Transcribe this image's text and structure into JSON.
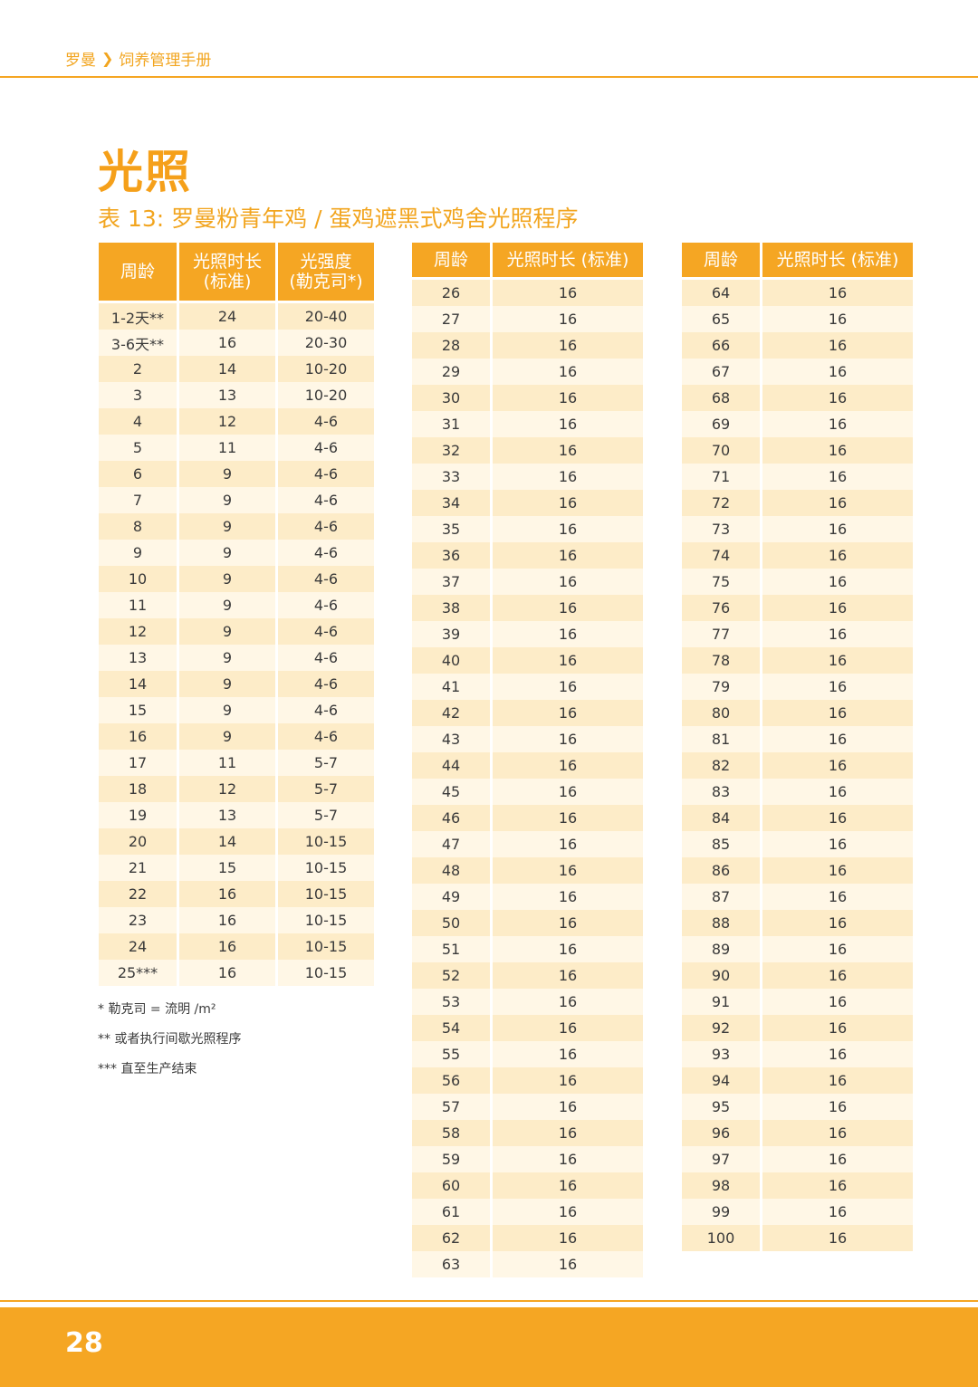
{
  "header": {
    "brand": "罗曼",
    "section": "饲养管理手册"
  },
  "title": "光照",
  "subtitle": "表 13: 罗曼粉青年鸡 / 蛋鸡遮黑式鸡舍光照程序",
  "table1": {
    "headers": [
      "周龄",
      "光照时长\n(标准)",
      "光强度\n(勒克司*)"
    ],
    "rows": [
      [
        "1-2天**",
        "24",
        "20-40"
      ],
      [
        "3-6天**",
        "16",
        "20-30"
      ],
      [
        "2",
        "14",
        "10-20"
      ],
      [
        "3",
        "13",
        "10-20"
      ],
      [
        "4",
        "12",
        "4-6"
      ],
      [
        "5",
        "11",
        "4-6"
      ],
      [
        "6",
        "9",
        "4-6"
      ],
      [
        "7",
        "9",
        "4-6"
      ],
      [
        "8",
        "9",
        "4-6"
      ],
      [
        "9",
        "9",
        "4-6"
      ],
      [
        "10",
        "9",
        "4-6"
      ],
      [
        "11",
        "9",
        "4-6"
      ],
      [
        "12",
        "9",
        "4-6"
      ],
      [
        "13",
        "9",
        "4-6"
      ],
      [
        "14",
        "9",
        "4-6"
      ],
      [
        "15",
        "9",
        "4-6"
      ],
      [
        "16",
        "9",
        "4-6"
      ],
      [
        "17",
        "11",
        "5-7"
      ],
      [
        "18",
        "12",
        "5-7"
      ],
      [
        "19",
        "13",
        "5-7"
      ],
      [
        "20",
        "14",
        "10-15"
      ],
      [
        "21",
        "15",
        "10-15"
      ],
      [
        "22",
        "16",
        "10-15"
      ],
      [
        "23",
        "16",
        "10-15"
      ],
      [
        "24",
        "16",
        "10-15"
      ],
      [
        "25***",
        "16",
        "10-15"
      ]
    ]
  },
  "table2": {
    "headers": [
      "周龄",
      "光照时长 (标准)"
    ],
    "rows": [
      [
        "26",
        "16"
      ],
      [
        "27",
        "16"
      ],
      [
        "28",
        "16"
      ],
      [
        "29",
        "16"
      ],
      [
        "30",
        "16"
      ],
      [
        "31",
        "16"
      ],
      [
        "32",
        "16"
      ],
      [
        "33",
        "16"
      ],
      [
        "34",
        "16"
      ],
      [
        "35",
        "16"
      ],
      [
        "36",
        "16"
      ],
      [
        "37",
        "16"
      ],
      [
        "38",
        "16"
      ],
      [
        "39",
        "16"
      ],
      [
        "40",
        "16"
      ],
      [
        "41",
        "16"
      ],
      [
        "42",
        "16"
      ],
      [
        "43",
        "16"
      ],
      [
        "44",
        "16"
      ],
      [
        "45",
        "16"
      ],
      [
        "46",
        "16"
      ],
      [
        "47",
        "16"
      ],
      [
        "48",
        "16"
      ],
      [
        "49",
        "16"
      ],
      [
        "50",
        "16"
      ],
      [
        "51",
        "16"
      ],
      [
        "52",
        "16"
      ],
      [
        "53",
        "16"
      ],
      [
        "54",
        "16"
      ],
      [
        "55",
        "16"
      ],
      [
        "56",
        "16"
      ],
      [
        "57",
        "16"
      ],
      [
        "58",
        "16"
      ],
      [
        "59",
        "16"
      ],
      [
        "60",
        "16"
      ],
      [
        "61",
        "16"
      ],
      [
        "62",
        "16"
      ],
      [
        "63",
        "16"
      ]
    ]
  },
  "table3": {
    "headers": [
      "周龄",
      "光照时长 (标准)"
    ],
    "rows": [
      [
        "64",
        "16"
      ],
      [
        "65",
        "16"
      ],
      [
        "66",
        "16"
      ],
      [
        "67",
        "16"
      ],
      [
        "68",
        "16"
      ],
      [
        "69",
        "16"
      ],
      [
        "70",
        "16"
      ],
      [
        "71",
        "16"
      ],
      [
        "72",
        "16"
      ],
      [
        "73",
        "16"
      ],
      [
        "74",
        "16"
      ],
      [
        "75",
        "16"
      ],
      [
        "76",
        "16"
      ],
      [
        "77",
        "16"
      ],
      [
        "78",
        "16"
      ],
      [
        "79",
        "16"
      ],
      [
        "80",
        "16"
      ],
      [
        "81",
        "16"
      ],
      [
        "82",
        "16"
      ],
      [
        "83",
        "16"
      ],
      [
        "84",
        "16"
      ],
      [
        "85",
        "16"
      ],
      [
        "86",
        "16"
      ],
      [
        "87",
        "16"
      ],
      [
        "88",
        "16"
      ],
      [
        "89",
        "16"
      ],
      [
        "90",
        "16"
      ],
      [
        "91",
        "16"
      ],
      [
        "92",
        "16"
      ],
      [
        "93",
        "16"
      ],
      [
        "94",
        "16"
      ],
      [
        "95",
        "16"
      ],
      [
        "96",
        "16"
      ],
      [
        "97",
        "16"
      ],
      [
        "98",
        "16"
      ],
      [
        "99",
        "16"
      ],
      [
        "100",
        "16"
      ]
    ]
  },
  "notes": [
    "* 勒克司 = 流明 /m²",
    "** 或者执行间歇光照程序",
    "*** 直至生产结束"
  ],
  "footer": {
    "page_number": "28"
  },
  "colors": {
    "accent": "#f5a623",
    "row_dark": "#fdecc8",
    "row_light": "#fff7e6"
  }
}
